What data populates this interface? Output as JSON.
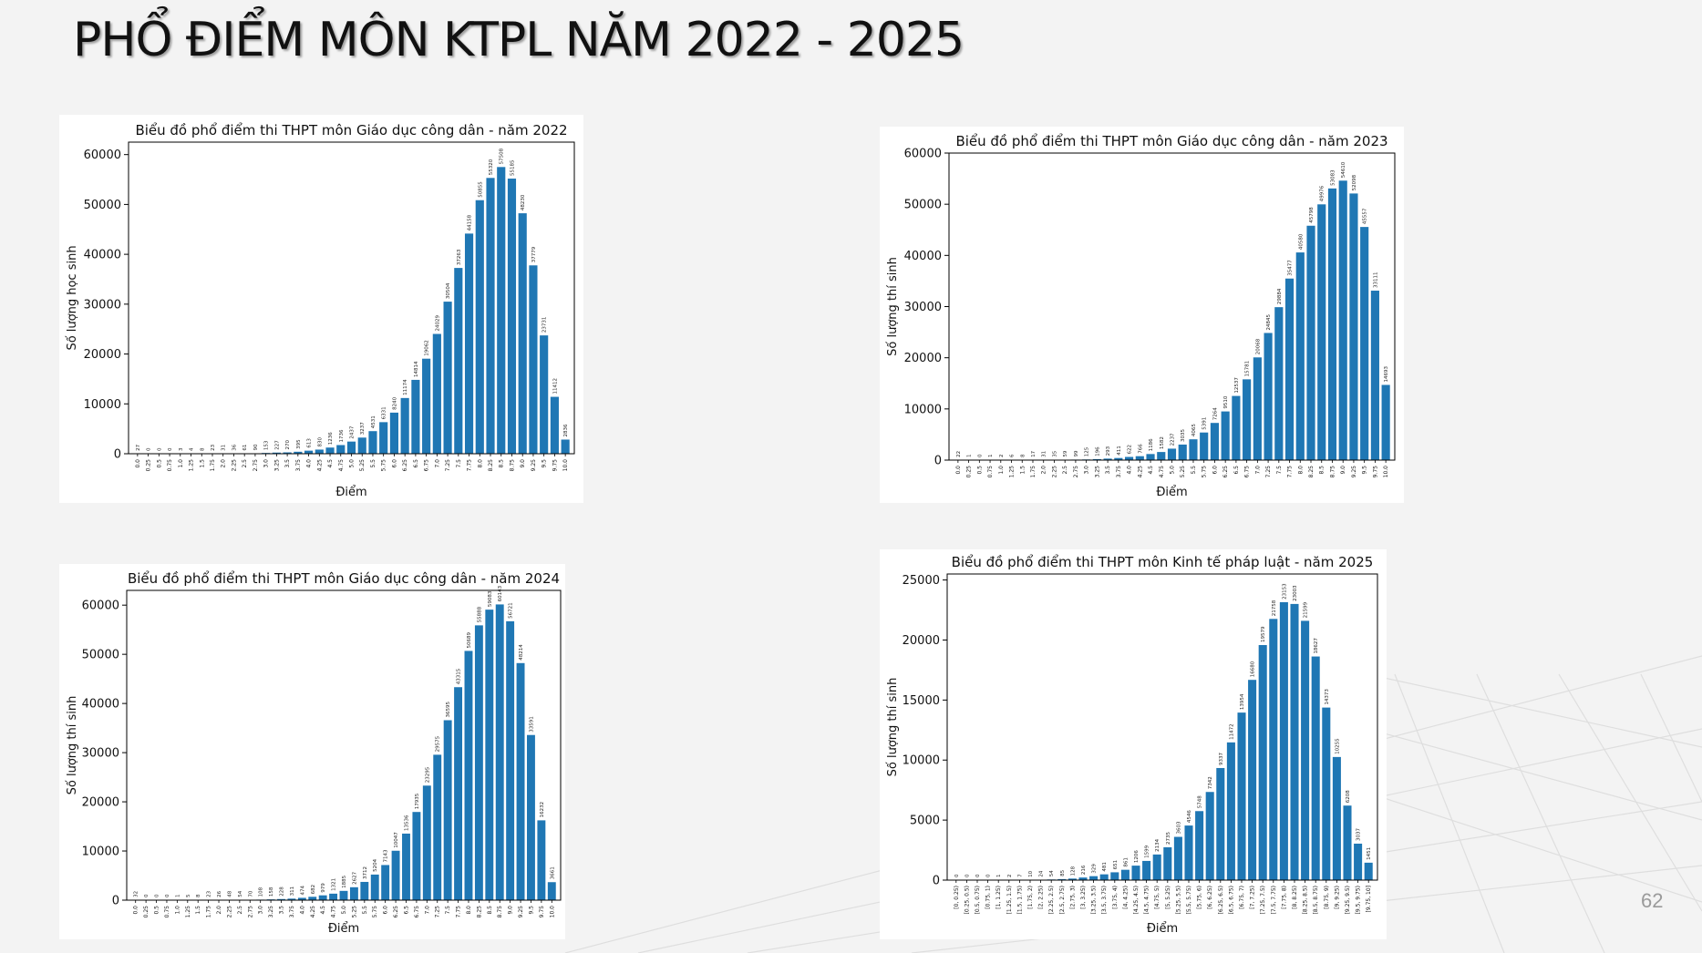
{
  "slide": {
    "title": "PHỔ ĐIỂM MÔN KTPL NĂM 2022 - 2025",
    "page_number": "62"
  },
  "colors": {
    "bar": "#1f77b4",
    "background": "#f3f3f3",
    "panel": "#ffffff"
  },
  "chart_data": [
    {
      "type": "bar",
      "title": "Biểu đồ phổ điểm thi THPT môn Giáo dục công dân - năm 2022",
      "xlabel": "Điểm",
      "ylabel": "Số lượng học sinh",
      "ylim": [
        0,
        62500
      ],
      "yticks": [
        0,
        10000,
        20000,
        30000,
        40000,
        50000,
        60000
      ],
      "grid": false,
      "categories": [
        "0.0",
        "0.25",
        "0.5",
        "0.75",
        "1.0",
        "1.25",
        "1.5",
        "1.75",
        "2.0",
        "2.25",
        "2.5",
        "2.75",
        "3.0",
        "3.25",
        "3.5",
        "3.75",
        "4.0",
        "4.25",
        "4.5",
        "4.75",
        "5.0",
        "5.25",
        "5.5",
        "5.75",
        "6.0",
        "6.25",
        "6.5",
        "6.75",
        "7.0",
        "7.25",
        "7.5",
        "7.75",
        "8.0",
        "8.25",
        "8.5",
        "8.75",
        "9.0",
        "9.25",
        "9.5",
        "9.75",
        "10.0"
      ],
      "values": [
        27,
        0,
        0,
        0,
        3,
        4,
        8,
        23,
        31,
        36,
        61,
        90,
        153,
        227,
        270,
        395,
        613,
        830,
        1236,
        1736,
        2437,
        3237,
        4531,
        6331,
        8240,
        11174,
        14814,
        19062,
        24029,
        30504,
        37263,
        44158,
        50855,
        55320,
        57508,
        55185,
        48230,
        37779,
        23731,
        11412,
        2836
      ],
      "data_labels": [
        "27",
        "0",
        "0",
        "0",
        "3",
        "4",
        "8",
        "23",
        "31",
        "36",
        "61",
        "90",
        "153",
        "227",
        "270",
        "395",
        "613",
        "830",
        "1236",
        "1736",
        "2437",
        "3237",
        "4531",
        "6331",
        "8240",
        "11174",
        "14814",
        "19062",
        "24029",
        "30504",
        "37263",
        "44158",
        "50855",
        "55320",
        "57508",
        "55185",
        "48230",
        "37779",
        "23731",
        "11412",
        "2836"
      ]
    },
    {
      "type": "bar",
      "title": "Biểu đồ phổ điểm thi THPT môn Giáo dục công dân - năm 2023",
      "xlabel": "Điểm",
      "ylabel": "Số lượng thí sinh",
      "ylim": [
        0,
        60000
      ],
      "yticks": [
        0,
        10000,
        20000,
        30000,
        40000,
        50000,
        60000
      ],
      "grid": false,
      "categories": [
        "0.0",
        "0.25",
        "0.5",
        "0.75",
        "1.0",
        "1.25",
        "1.5",
        "1.75",
        "2.0",
        "2.25",
        "2.5",
        "2.75",
        "3.0",
        "3.25",
        "3.5",
        "3.75",
        "4.0",
        "4.25",
        "4.5",
        "4.75",
        "5.0",
        "5.25",
        "5.5",
        "5.75",
        "6.0",
        "6.25",
        "6.5",
        "6.75",
        "7.0",
        "7.25",
        "7.5",
        "7.75",
        "8.0",
        "8.25",
        "8.5",
        "8.75",
        "9.0",
        "9.25",
        "9.5",
        "9.75",
        "10.0"
      ],
      "values": [
        22,
        1,
        0,
        1,
        2,
        6,
        8,
        17,
        31,
        35,
        59,
        99,
        125,
        196,
        293,
        411,
        622,
        766,
        1186,
        1582,
        2237,
        3035,
        4065,
        5391,
        7264,
        9510,
        12537,
        15781,
        20068,
        24845,
        29884,
        35477,
        40580,
        45798,
        49976,
        53083,
        54610,
        52098,
        45557,
        33111,
        14693
      ],
      "data_labels": [
        "22",
        "1",
        "0",
        "1",
        "2",
        "6",
        "8",
        "17",
        "31",
        "35",
        "59",
        "99",
        "125",
        "196",
        "293",
        "411",
        "622",
        "766",
        "1186",
        "1582",
        "2237",
        "3035",
        "4065",
        "5391",
        "7264",
        "9510",
        "12537",
        "15781",
        "20068",
        "24845",
        "29884",
        "35477",
        "40580",
        "45798",
        "49976",
        "53083",
        "54610",
        "52098",
        "45557",
        "33111",
        "14693"
      ]
    },
    {
      "type": "bar",
      "title": "Biểu đồ phổ điểm thi THPT môn Giáo dục công dân - năm 2024",
      "xlabel": "Điểm",
      "ylabel": "Số lượng thí sinh",
      "ylim": [
        0,
        63000
      ],
      "yticks": [
        0,
        10000,
        20000,
        30000,
        40000,
        50000,
        60000
      ],
      "grid": false,
      "categories": [
        "0.0",
        "0.25",
        "0.5",
        "0.75",
        "1.0",
        "1.25",
        "1.5",
        "1.75",
        "2.0",
        "2.25",
        "2.5",
        "2.75",
        "3.0",
        "3.25",
        "3.5",
        "3.75",
        "4.0",
        "4.25",
        "4.5",
        "4.75",
        "5.0",
        "5.25",
        "5.5",
        "5.75",
        "6.0",
        "6.25",
        "6.5",
        "6.75",
        "7.0",
        "7.25",
        "7.5",
        "7.75",
        "8.0",
        "8.25",
        "8.5",
        "8.75",
        "9.0",
        "9.25",
        "9.5",
        "9.75",
        "10.0"
      ],
      "values": [
        32,
        0,
        0,
        0,
        1,
        5,
        8,
        23,
        26,
        48,
        54,
        70,
        108,
        158,
        228,
        311,
        474,
        682,
        979,
        1321,
        1885,
        2627,
        3712,
        5204,
        7143,
        10047,
        13536,
        17935,
        23295,
        29575,
        36595,
        43315,
        50689,
        55888,
        59083,
        60143,
        56721,
        48214,
        33591,
        16232,
        3661
      ],
      "data_labels": [
        "32",
        "0",
        "0",
        "0",
        "1",
        "5",
        "8",
        "23",
        "26",
        "48",
        "54",
        "70",
        "108",
        "158",
        "228",
        "311",
        "474",
        "682",
        "979",
        "1321",
        "1885",
        "2627",
        "3712",
        "5204",
        "7143",
        "10047",
        "13536",
        "17935",
        "23295",
        "29575",
        "36595",
        "43315",
        "50689",
        "55888",
        "59083",
        "60143",
        "56721",
        "48214",
        "33591",
        "16232",
        "3661"
      ]
    },
    {
      "type": "bar",
      "title": "Biểu đồ phổ điểm thi THPT môn Kinh tế pháp luật - năm 2025",
      "xlabel": "Điểm",
      "ylabel": "Số lượng thí sinh",
      "ylim": [
        0,
        25500
      ],
      "yticks": [
        0,
        5000,
        10000,
        15000,
        20000,
        25000
      ],
      "grid": false,
      "categories": [
        "[0, 0.25)",
        "[0.25, 0.5)",
        "[0.5, 0.75)",
        "[0.75, 1)",
        "[1, 1.25)",
        "[1.25, 1.5)",
        "[1.5, 1.75)",
        "[1.75, 2)",
        "[2, 2.25)",
        "[2.25, 2.5)",
        "[2.5, 2.75)",
        "[2.75, 3)",
        "[3, 3.25)",
        "[3.25, 3.5)",
        "[3.5, 3.75)",
        "[3.75, 4)",
        "[4, 4.25)",
        "[4.25, 4.5)",
        "[4.5, 4.75)",
        "[4.75, 5)",
        "[5, 5.25)",
        "[5.25, 5.5)",
        "[5.5, 5.75)",
        "[5.75, 6)",
        "[6, 6.25)",
        "[6.25, 6.5)",
        "[6.5, 6.75)",
        "[6.75, 7)",
        "[7, 7.25)",
        "[7.25, 7.5)",
        "[7.5, 7.75)",
        "[7.75, 8)",
        "[8, 8.25)",
        "[8.25, 8.5)",
        "[8.5, 8.75)",
        "[8.75, 9)",
        "[9, 9.25)",
        "[9.25, 9.5)",
        "[9.5, 9.75)",
        "[9.75, 10]"
      ],
      "values": [
        0,
        0,
        0,
        0,
        1,
        2,
        7,
        10,
        24,
        54,
        85,
        128,
        216,
        329,
        481,
        651,
        861,
        1206,
        1599,
        2134,
        2735,
        3603,
        4546,
        5748,
        7342,
        9337,
        11472,
        13954,
        16680,
        19579,
        21758,
        23153,
        23003,
        21599,
        18627,
        14373,
        10255,
        6208,
        3037,
        1451
      ],
      "data_labels": [
        "0",
        "0",
        "0",
        "0",
        "1",
        "2",
        "7",
        "10",
        "24",
        "54",
        "85",
        "128",
        "216",
        "329",
        "481",
        "651",
        "861",
        "1206",
        "1599",
        "2134",
        "2735",
        "3603",
        "4546",
        "5748",
        "7342",
        "9337",
        "11472",
        "13954",
        "16680",
        "19579",
        "21758",
        "23153",
        "23003",
        "21599",
        "18627",
        "14373",
        "10255",
        "6208",
        "3037",
        "1451"
      ]
    }
  ]
}
